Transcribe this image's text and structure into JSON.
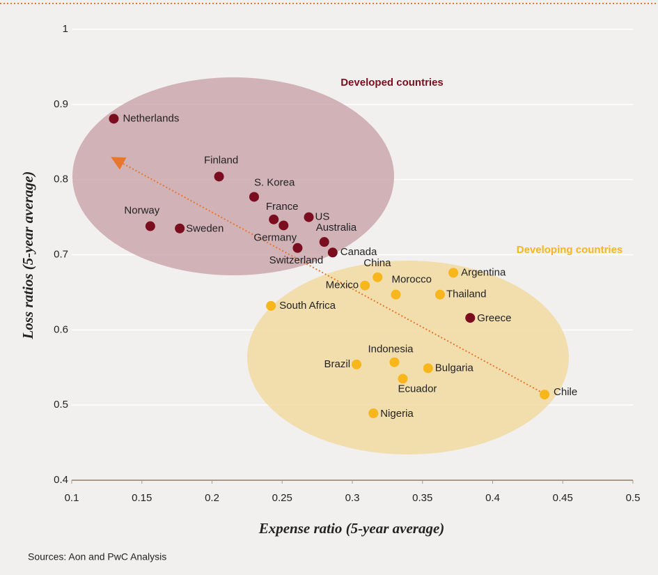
{
  "chart_data": {
    "type": "scatter",
    "xlabel": "Expense ratio (5-year average)",
    "ylabel": "Loss ratios  (5-year average)",
    "source": "Sources: Aon and PwC Analysis",
    "xlim": [
      0.1,
      0.5
    ],
    "xticks": [
      0.1,
      0.15,
      0.2,
      0.25,
      0.3,
      0.35,
      0.4,
      0.45,
      0.5
    ],
    "ylim": [
      0.4,
      1
    ],
    "yticks": [
      0.4,
      0.5,
      0.6,
      0.7,
      0.8,
      0.9,
      1
    ],
    "grid": true,
    "series": [
      {
        "name": "Developed countries",
        "color": "#7b0e1e",
        "labels": [
          "Netherlands",
          "Finland",
          "S. Korea",
          "France",
          "Germany",
          "US",
          "Australia",
          "Canada",
          "Switzerland",
          "Norway",
          "Sweden",
          "Greece"
        ],
        "x": [
          0.13,
          0.205,
          0.23,
          0.244,
          0.251,
          0.269,
          0.28,
          0.286,
          0.261,
          0.156,
          0.177,
          0.384
        ],
        "values": [
          0.881,
          0.804,
          0.777,
          0.747,
          0.739,
          0.75,
          0.717,
          0.703,
          0.709,
          0.738,
          0.735,
          0.616
        ]
      },
      {
        "name": "Developing countries",
        "color": "#f6b61c",
        "labels": [
          "China",
          "Mexico",
          "Argentina",
          "Morocco",
          "Thailand",
          "South Africa",
          "Indonesia",
          "Brazil",
          "Bulgaria",
          "Ecuador",
          "Nigeria",
          "Chile"
        ],
        "x": [
          0.318,
          0.309,
          0.372,
          0.331,
          0.3625,
          0.242,
          0.33,
          0.303,
          0.354,
          0.336,
          0.315,
          0.437
        ],
        "values": [
          0.67,
          0.659,
          0.676,
          0.647,
          0.647,
          0.632,
          0.557,
          0.554,
          0.549,
          0.535,
          0.489,
          0.514
        ]
      }
    ]
  }
}
